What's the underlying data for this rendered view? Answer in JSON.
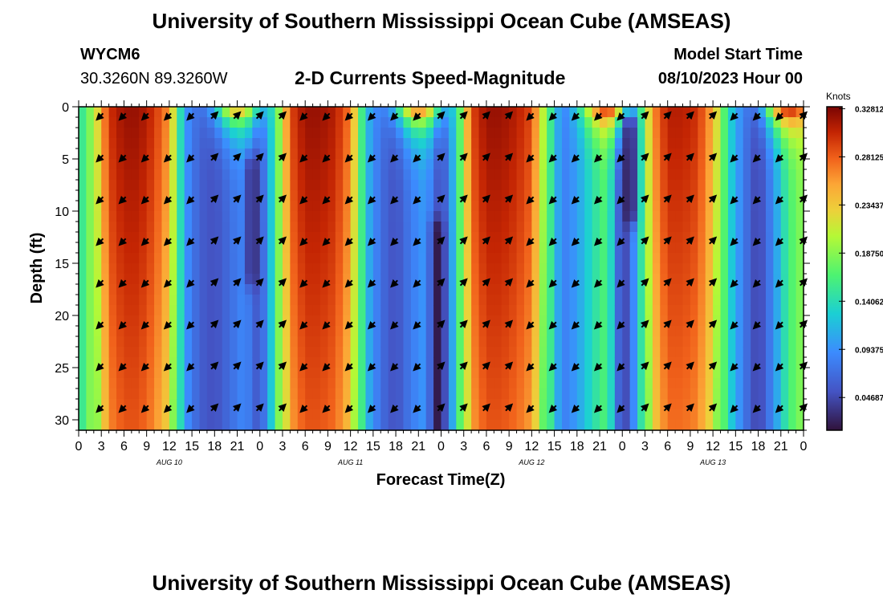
{
  "page": {
    "title": "University of Southern Mississippi Ocean Cube (AMSEAS)",
    "title_bottom": "University of Southern Mississippi Ocean Cube (AMSEAS)",
    "station_id": "WYCM6",
    "coords": "30.3260N  89.3260W",
    "subtitle": "2-D Currents Speed-Magnitude",
    "model_start_label": "Model Start Time",
    "model_start_value": "08/10/2023 Hour 00"
  },
  "chart_data": {
    "type": "heatmap",
    "title": "2-D Currents Speed-Magnitude",
    "xlabel": "Forecast Time(Z)",
    "ylabel": "Depth (ft)",
    "xlim": [
      0,
      96
    ],
    "ylim": [
      0,
      31
    ],
    "x_tick_values": [
      0,
      3,
      6,
      9,
      12,
      15,
      18,
      21,
      24,
      27,
      30,
      33,
      36,
      39,
      42,
      45,
      48,
      51,
      54,
      57,
      60,
      63,
      66,
      69,
      72,
      75,
      78,
      81,
      84,
      87,
      90,
      93,
      96
    ],
    "x_tick_labels": [
      "0",
      "3",
      "6",
      "9",
      "12",
      "15",
      "18",
      "21",
      "0",
      "3",
      "6",
      "9",
      "12",
      "15",
      "18",
      "21",
      "0",
      "3",
      "6",
      "9",
      "12",
      "15",
      "18",
      "21",
      "0",
      "3",
      "6",
      "9",
      "12",
      "15",
      "18",
      "21",
      "0"
    ],
    "date_labels": [
      {
        "label": "AUG 10",
        "x": 12
      },
      {
        "label": "AUG 11",
        "x": 36
      },
      {
        "label": "AUG 12",
        "x": 60
      },
      {
        "label": "AUG 13",
        "x": 84
      }
    ],
    "y_ticks": [
      0,
      5,
      10,
      15,
      20,
      25,
      30
    ],
    "colorbar": {
      "label": "Knots",
      "min": 0.015,
      "max": 0.33,
      "ticks": [
        "0.32812",
        "0.28125",
        "0.23437",
        "0.18750",
        "0.14062",
        "0.09375",
        "0.04687"
      ],
      "tick_values": [
        0.32812,
        0.28125,
        0.23437,
        0.1875,
        0.14062,
        0.09375,
        0.04687
      ]
    },
    "speed_profile": {
      "hours": [
        0,
        2,
        4,
        6,
        8,
        10,
        12,
        14,
        16,
        18,
        20,
        22,
        24,
        26,
        28,
        30,
        32,
        34,
        36,
        38,
        40,
        42,
        44,
        46,
        48,
        50,
        52,
        54,
        56,
        58,
        60,
        62,
        64,
        66,
        68,
        70,
        72,
        74,
        76,
        78,
        80,
        82,
        84,
        86,
        88,
        90,
        92,
        94,
        96
      ],
      "knots": [
        0.14,
        0.2,
        0.3,
        0.32,
        0.32,
        0.3,
        0.26,
        0.1,
        0.06,
        0.05,
        0.07,
        0.09,
        0.05,
        0.15,
        0.29,
        0.32,
        0.32,
        0.31,
        0.27,
        0.12,
        0.07,
        0.05,
        0.08,
        0.1,
        0.04,
        0.13,
        0.29,
        0.32,
        0.32,
        0.31,
        0.29,
        0.18,
        0.08,
        0.1,
        0.14,
        0.17,
        0.03,
        0.11,
        0.26,
        0.31,
        0.31,
        0.3,
        0.25,
        0.14,
        0.08,
        0.04,
        0.09,
        0.16,
        0.19
      ]
    },
    "surface_features": [
      {
        "center_hour": 21,
        "width_hours": 3,
        "knots": 0.27
      },
      {
        "center_hour": 45,
        "width_hours": 3,
        "knots": 0.3
      },
      {
        "center_hour": 70,
        "width_hours": 3,
        "knots": 0.32
      },
      {
        "center_hour": 94,
        "width_hours": 3,
        "knots": 0.33
      }
    ],
    "low_speed_features": [
      {
        "center_hour": 23,
        "depth_from": 6,
        "depth_to": 16,
        "knots": 0.03
      },
      {
        "center_hour": 47.5,
        "depth_from": 12,
        "depth_to": 31,
        "knots": 0.02
      },
      {
        "center_hour": 73,
        "depth_from": 2,
        "depth_to": 10,
        "knots": 0.02
      }
    ],
    "vector_hours": [
      3,
      6,
      9,
      12,
      15,
      18,
      21,
      24,
      27,
      30,
      33,
      36,
      39,
      42,
      45,
      48,
      51,
      54,
      57,
      60,
      63,
      66,
      69,
      72,
      75,
      78,
      81,
      84,
      87,
      90,
      93,
      96
    ],
    "vector_depths": [
      0.5,
      4.5,
      8.5,
      12.5,
      16.5,
      20.5,
      24.5,
      28.5
    ],
    "vector_directions_deg": [
      225,
      225,
      225,
      225,
      225,
      45,
      45,
      45,
      45,
      225,
      225,
      225,
      225,
      225,
      225,
      45,
      45,
      45,
      45,
      225,
      225,
      225,
      225,
      225,
      45,
      45,
      45,
      45,
      225,
      225,
      225,
      45
    ]
  }
}
